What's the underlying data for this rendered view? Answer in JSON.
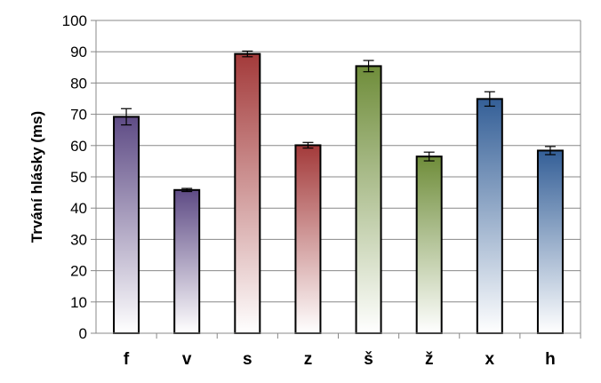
{
  "chart_data": {
    "type": "bar",
    "title": "",
    "xlabel": "",
    "ylabel": "Trvání hlásky (ms)",
    "ylim": [
      0,
      100
    ],
    "yticks": [
      0,
      10,
      20,
      30,
      40,
      50,
      60,
      70,
      80,
      90,
      100
    ],
    "grid": true,
    "categories": [
      "f",
      "v",
      "s",
      "z",
      "š",
      "ž",
      "x",
      "h"
    ],
    "values": [
      69.2,
      45.8,
      89.3,
      60.1,
      85.4,
      56.5,
      74.9,
      58.4
    ],
    "errors": [
      2.6,
      0.5,
      0.9,
      0.9,
      1.8,
      1.4,
      2.3,
      1.3
    ],
    "colors": [
      "#5e4b85",
      "#5e4b85",
      "#a33a3a",
      "#a33a3a",
      "#6f8d3a",
      "#6f8d3a",
      "#345f97",
      "#345f97"
    ]
  }
}
